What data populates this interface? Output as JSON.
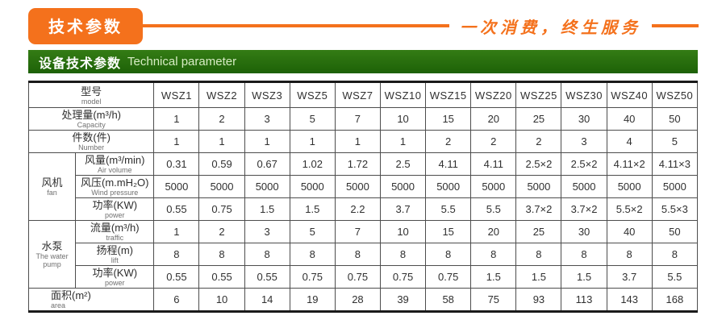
{
  "topbar": {
    "badge_label": "技术参数",
    "slogan": "一次消费，终生服务"
  },
  "panel": {
    "title_cn": "设备技术参数",
    "title_en": "Technical parameter"
  },
  "colors": {
    "accent_orange": "#f4711c",
    "header_green": "#256c0d",
    "table_border": "#4d4d4d",
    "outer_border": "#1a1a1a"
  },
  "table": {
    "model_header": {
      "cn": "型号",
      "en": "model"
    },
    "models": [
      "WSZ1",
      "WSZ2",
      "WSZ3",
      "WSZ5",
      "WSZ7",
      "WSZ10",
      "WSZ15",
      "WSZ20",
      "WSZ25",
      "WSZ30",
      "WSZ40",
      "WSZ50"
    ],
    "top_rows": [
      {
        "cn": "处理量(m³/h)",
        "en": "Capacity",
        "values": [
          "1",
          "2",
          "3",
          "5",
          "7",
          "10",
          "15",
          "20",
          "25",
          "30",
          "40",
          "50"
        ]
      },
      {
        "cn": "件数(件)",
        "en": "Number",
        "values": [
          "1",
          "1",
          "1",
          "1",
          "1",
          "1",
          "2",
          "2",
          "2",
          "3",
          "4",
          "5"
        ]
      }
    ],
    "groups": [
      {
        "cn": "风机",
        "en": "fan",
        "rows": [
          {
            "cn": "风量(m³/min)",
            "en": "Air volume",
            "values": [
              "0.31",
              "0.59",
              "0.67",
              "1.02",
              "1.72",
              "2.5",
              "4.11",
              "4.11",
              "2.5×2",
              "2.5×2",
              "4.11×2",
              "4.11×3"
            ]
          },
          {
            "cn": "风压(m.mH₂O)",
            "en": "Wind pressure",
            "values": [
              "5000",
              "5000",
              "5000",
              "5000",
              "5000",
              "5000",
              "5000",
              "5000",
              "5000",
              "5000",
              "5000",
              "5000"
            ]
          },
          {
            "cn": "功率(KW)",
            "en": "power",
            "values": [
              "0.55",
              "0.75",
              "1.5",
              "1.5",
              "2.2",
              "3.7",
              "5.5",
              "5.5",
              "3.7×2",
              "3.7×2",
              "5.5×2",
              "5.5×3"
            ]
          }
        ]
      },
      {
        "cn": "水泵",
        "en": "The water pump",
        "rows": [
          {
            "cn": "流量(m³/h)",
            "en": "traffic",
            "values": [
              "1",
              "2",
              "3",
              "5",
              "7",
              "10",
              "15",
              "20",
              "25",
              "30",
              "40",
              "50"
            ]
          },
          {
            "cn": "扬程(m)",
            "en": "lift",
            "values": [
              "8",
              "8",
              "8",
              "8",
              "8",
              "8",
              "8",
              "8",
              "8",
              "8",
              "8",
              "8"
            ]
          },
          {
            "cn": "功率(KW)",
            "en": "power",
            "values": [
              "0.55",
              "0.55",
              "0.55",
              "0.75",
              "0.75",
              "0.75",
              "0.75",
              "1.5",
              "1.5",
              "1.5",
              "3.7",
              "5.5"
            ]
          }
        ]
      }
    ],
    "area_row": {
      "cn": "面积(m²)",
      "en": "area",
      "values": [
        "6",
        "10",
        "14",
        "19",
        "28",
        "39",
        "58",
        "75",
        "93",
        "113",
        "143",
        "168"
      ]
    }
  }
}
